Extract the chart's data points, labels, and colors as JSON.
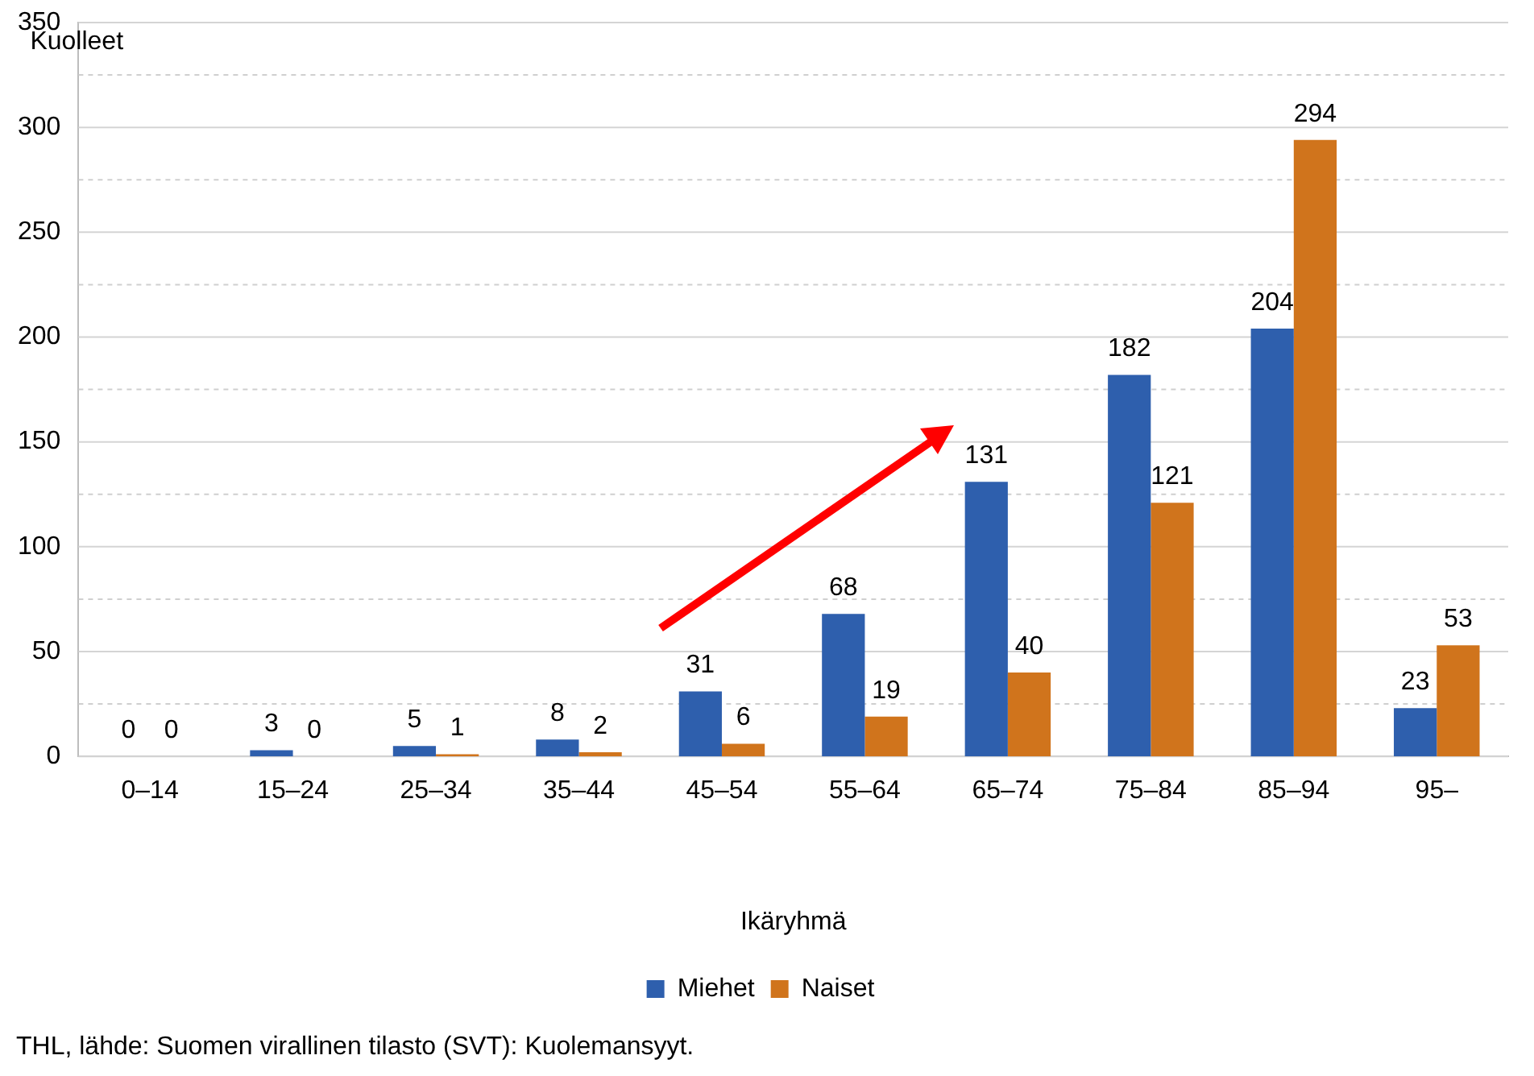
{
  "chart_data": {
    "type": "bar",
    "categories": [
      "0–14",
      "15–24",
      "25–34",
      "35–44",
      "45–54",
      "55–64",
      "65–74",
      "75–84",
      "85–94",
      "95–"
    ],
    "series": [
      {
        "name": "Miehet",
        "color": "#2e5fad",
        "values": [
          0,
          3,
          5,
          8,
          31,
          68,
          131,
          182,
          204,
          23
        ]
      },
      {
        "name": "Naiset",
        "color": "#d0741c",
        "values": [
          0,
          0,
          1,
          2,
          6,
          19,
          40,
          121,
          294,
          53
        ]
      }
    ],
    "xlabel": "Ikäryhmä",
    "ylabel": "Kuolleet",
    "ylim": [
      0,
      350
    ],
    "yticks": [
      0,
      {
        "value": 25,
        "label": null
      },
      50,
      {
        "value": 75,
        "label": null
      },
      100,
      {
        "value": 125,
        "label": null
      },
      150,
      {
        "value": 175,
        "label": null
      },
      200,
      {
        "value": 225,
        "label": null
      },
      250,
      {
        "value": 275,
        "label": null
      },
      300,
      {
        "value": 325,
        "label": null
      },
      350
    ],
    "grid": "y",
    "legend": "bottom",
    "data_labels": true,
    "annotations": [
      "THL, lähde: Suomen virallinen tilasto (SVT): Kuolemansyyt."
    ]
  }
}
